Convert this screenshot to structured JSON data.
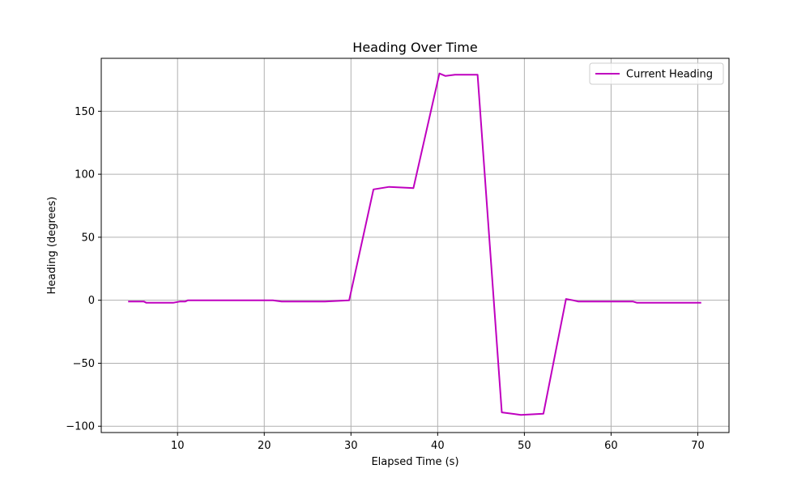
{
  "chart_data": {
    "type": "line",
    "title": "Heading Over Time",
    "xlabel": "Elapsed Time (s)",
    "ylabel": "Heading (degrees)",
    "xlim": [
      1.2,
      73.6
    ],
    "ylim": [
      -105,
      192
    ],
    "xticks": [
      10,
      20,
      30,
      40,
      50,
      60,
      70
    ],
    "yticks": [
      -100,
      -50,
      0,
      50,
      100,
      150
    ],
    "xtick_labels": [
      "10",
      "20",
      "30",
      "40",
      "50",
      "60",
      "70"
    ],
    "ytick_labels": [
      "−100",
      "−50",
      "0",
      "50",
      "100",
      "150"
    ],
    "grid": true,
    "legend_position": "top-right",
    "series": [
      {
        "name": "Current Heading",
        "color": "#bf00bf",
        "x": [
          4.3,
          6.1,
          6.4,
          9.5,
          10.3,
          10.9,
          11.2,
          12.0,
          15.0,
          18.0,
          21.0,
          22.0,
          25.0,
          27.0,
          29.8,
          32.6,
          34.4,
          37.2,
          40.2,
          40.9,
          42.0,
          44.6,
          47.4,
          49.6,
          52.2,
          54.8,
          55.6,
          56.2,
          58.0,
          60.0,
          62.5,
          63.0,
          66.0,
          70.4
        ],
        "y": [
          -1,
          -1,
          -2,
          -2,
          -1,
          -1,
          0,
          0,
          0,
          0,
          0,
          -1,
          -1,
          -1,
          0,
          88,
          90,
          89,
          180,
          178,
          179,
          179,
          -89,
          -91,
          -90,
          1,
          0,
          -1,
          -1,
          -1,
          -1,
          -2,
          -2,
          -2
        ]
      }
    ]
  }
}
